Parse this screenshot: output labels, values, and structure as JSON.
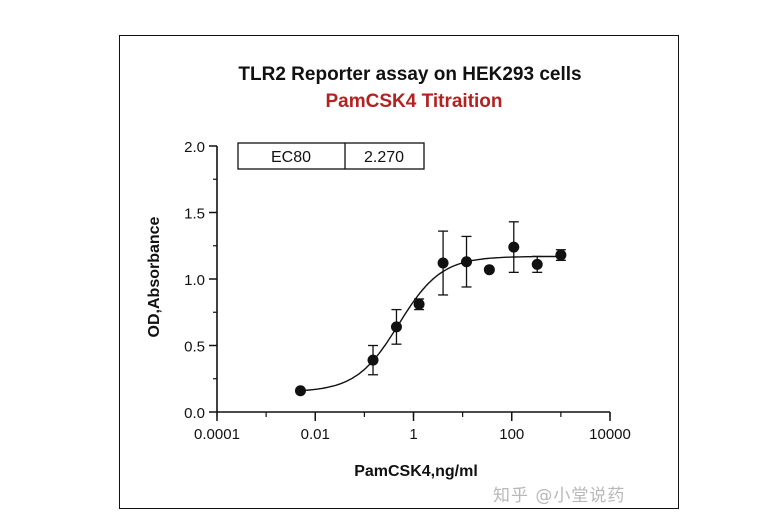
{
  "chart_data": {
    "type": "scatter",
    "title": "TLR2 Reporter assay on HEK293 cells",
    "subtitle": "PamCSK4 Titraition",
    "xlabel": "PamCSK4,ng/ml",
    "ylabel": "OD,Absorbance",
    "x_scale": "log",
    "xlim": [
      0.0001,
      10000
    ],
    "ylim": [
      0,
      2
    ],
    "x_ticks": [
      "0.0001",
      "0.01",
      "1",
      "100",
      "10000"
    ],
    "y_ticks": [
      "0.0",
      "0.5",
      "1.0",
      "1.5",
      "2.0"
    ],
    "grid": false,
    "series": [
      {
        "x": [
          0.005,
          0.15,
          0.45,
          1.3,
          4.0,
          12.0,
          35.0,
          110.0,
          330.0,
          1000.0
        ],
        "y": [
          0.16,
          0.39,
          0.64,
          0.81,
          1.12,
          1.13,
          1.07,
          1.24,
          1.11,
          1.18
        ],
        "error": [
          0.0,
          0.11,
          0.13,
          0.04,
          0.24,
          0.19,
          0.0,
          0.19,
          0.06,
          0.04
        ]
      }
    ],
    "fit_curve": {
      "bottom": 0.15,
      "top": 1.17,
      "ec50": 0.5,
      "hill": 1.0
    },
    "annotation": {
      "label": "EC80",
      "value": "2.270"
    },
    "title_color": "#111111",
    "subtitle_color": "#b22222",
    "marker_color": "#111111"
  },
  "watermark": "知乎 @小堂说药"
}
